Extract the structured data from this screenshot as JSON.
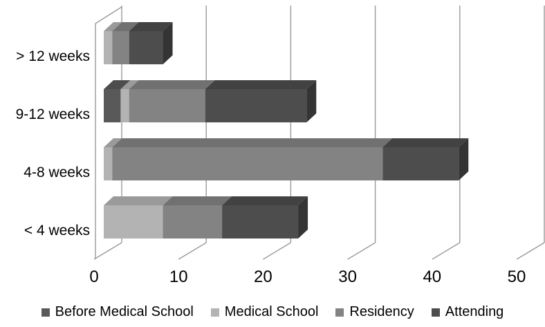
{
  "chart_data": {
    "type": "bar",
    "orientation": "horizontal",
    "stacked": true,
    "style": "pseudo-3d",
    "title": "",
    "xlabel": "",
    "ylabel": "",
    "categories": [
      "> 12 weeks",
      "9-12 weeks",
      "4-8 weeks",
      "< 4 weeks"
    ],
    "series": [
      {
        "name": "Before Medical School",
        "color": "#595959",
        "values": [
          0,
          2,
          0,
          0
        ]
      },
      {
        "name": "Medical School",
        "color": "#b3b3b3",
        "values": [
          1,
          1,
          1,
          7
        ]
      },
      {
        "name": "Residency",
        "color": "#838383",
        "values": [
          2,
          9,
          32,
          7
        ]
      },
      {
        "name": "Attending",
        "color": "#4d4d4d",
        "values": [
          4,
          12,
          9,
          9
        ]
      }
    ],
    "xticks": [
      0,
      10,
      20,
      30,
      40,
      50
    ],
    "xlim": [
      0,
      50
    ],
    "grid": true,
    "legend_position": "bottom",
    "colors": {
      "background": "#ffffff",
      "gridline": "#9a9a9a",
      "text": "#000000"
    }
  }
}
